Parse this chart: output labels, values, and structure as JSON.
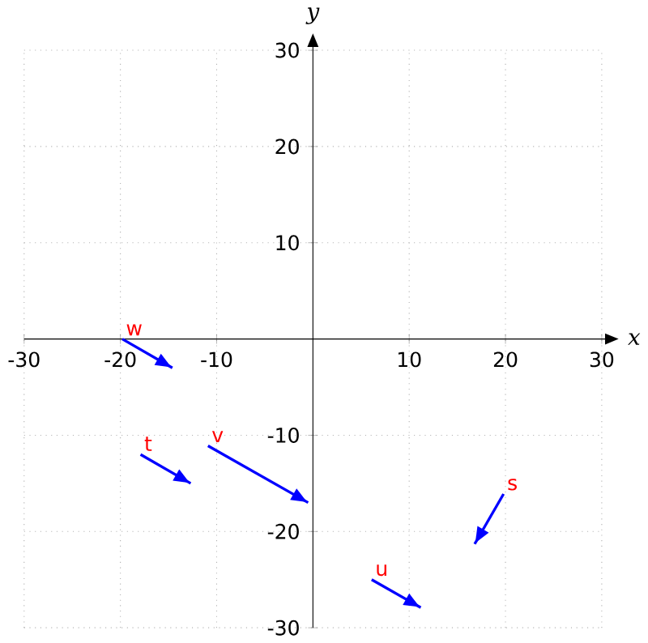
{
  "chart_data": {
    "type": "line",
    "xlabel": "x",
    "ylabel": "y",
    "xlim": [
      -30,
      30
    ],
    "ylim": [
      -30,
      30
    ],
    "xticks": [
      -30,
      -20,
      -10,
      10,
      20,
      30
    ],
    "yticks": [
      -30,
      -20,
      -10,
      10,
      20,
      30
    ],
    "grid": true,
    "legend": false,
    "marker": "none",
    "line_style": "solid",
    "series": [
      {
        "name": "w",
        "color": "#0000ff",
        "x": [
          -19.8,
          -14.6
        ],
        "values": [
          0,
          -3.0
        ]
      },
      {
        "name": "t",
        "color": "#0000ff",
        "x": [
          -17.9,
          -12.7
        ],
        "values": [
          -12.0,
          -15.0
        ]
      },
      {
        "name": "v",
        "color": "#0000ff",
        "x": [
          -10.9,
          -0.5
        ],
        "values": [
          -11.1,
          -17.0
        ]
      },
      {
        "name": "u",
        "color": "#0000ff",
        "x": [
          6.1,
          11.2
        ],
        "values": [
          -25.0,
          -27.9
        ]
      },
      {
        "name": "s",
        "color": "#0000ff",
        "x": [
          19.8,
          16.8
        ],
        "values": [
          -16.1,
          -21.3
        ]
      }
    ]
  }
}
